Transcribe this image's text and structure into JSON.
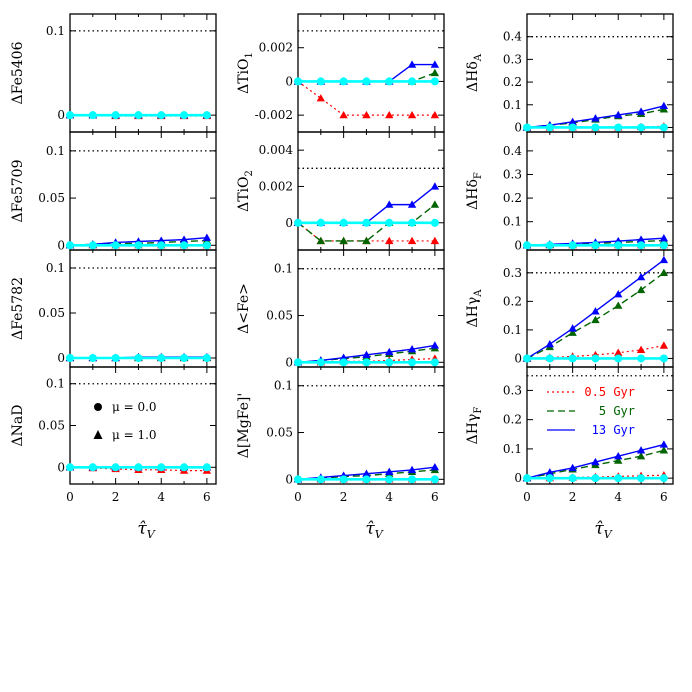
{
  "colors": {
    "age_0_5": "#ff0000",
    "age_5": "#006400",
    "age_13": "#0000ff",
    "mu0": "#00ffff",
    "reference": "#000000"
  },
  "chart_data": {
    "type": "line",
    "x": [
      0,
      1,
      2,
      3,
      4,
      5,
      6
    ],
    "xlabel": "τ̂V",
    "xticks": [
      "0",
      "2",
      "4",
      "6"
    ],
    "legend_mu": [
      {
        "marker": "circle",
        "text": "μ  =  0.0"
      },
      {
        "marker": "triangle",
        "text": "μ  =  1.0"
      }
    ],
    "legend_age": [
      {
        "style": "dotted",
        "color": "red",
        "text": "0.5 Gyr"
      },
      {
        "style": "dashed",
        "color": "green",
        "text": "5 Gyr"
      },
      {
        "style": "solid",
        "color": "blue",
        "text": "13 Gyr"
      }
    ],
    "panels": [
      {
        "ylabel": "ΔFe5406",
        "ylim": [
          -0.02,
          0.12
        ],
        "yticks": [
          "0",
          "0.1"
        ],
        "yticks_values": [
          0,
          0.1
        ],
        "reference": 0.1,
        "series": {
          "age_0_5": [
            0,
            0,
            -0.001,
            -0.001,
            -0.001,
            -0.001,
            -0.001
          ],
          "age_5": [
            0,
            0,
            0,
            0,
            0,
            0,
            0
          ],
          "age_13": [
            0,
            0,
            0,
            0,
            0,
            0,
            0
          ],
          "mu0": [
            0,
            0,
            0,
            0,
            0,
            0,
            0
          ]
        }
      },
      {
        "ylabel": "ΔTiO1",
        "ylim": [
          -0.003,
          0.004
        ],
        "yticks": [
          "-0.002",
          "0",
          "0.002"
        ],
        "yticks_values": [
          -0.002,
          0,
          0.002
        ],
        "reference": 0.003,
        "series": {
          "age_0_5": [
            0,
            -0.001,
            -0.002,
            -0.002,
            -0.002,
            -0.002,
            -0.002
          ],
          "age_5": [
            0,
            0,
            0,
            0,
            0,
            0,
            0.0005
          ],
          "age_13": [
            0,
            0,
            0,
            0,
            0,
            0.001,
            0.001
          ],
          "mu0": [
            0,
            0,
            0,
            0,
            0,
            0,
            0
          ]
        }
      },
      {
        "ylabel": "ΔHδA",
        "ylim": [
          -0.02,
          0.5
        ],
        "yticks": [
          "0",
          "0.1",
          "0.2",
          "0.3",
          "0.4"
        ],
        "yticks_values": [
          0,
          0.1,
          0.2,
          0.3,
          0.4
        ],
        "reference": 0.4,
        "series": {
          "age_0_5": [
            0,
            0,
            0,
            0,
            0,
            0.002,
            0.005
          ],
          "age_5": [
            0,
            0.01,
            0.02,
            0.035,
            0.05,
            0.06,
            0.08
          ],
          "age_13": [
            0,
            0.01,
            0.025,
            0.04,
            0.055,
            0.07,
            0.095
          ],
          "mu0": [
            0,
            0,
            0,
            0,
            0,
            0,
            0
          ]
        }
      },
      {
        "ylabel": "ΔFe5709",
        "ylim": [
          -0.005,
          0.12
        ],
        "yticks": [
          "0",
          "0.05",
          "0.1"
        ],
        "yticks_values": [
          0,
          0.05,
          0.1
        ],
        "reference": 0.1,
        "series": {
          "age_0_5": [
            0,
            0,
            0,
            0,
            0,
            0,
            0
          ],
          "age_5": [
            0,
            0.001,
            0.002,
            0.002,
            0.003,
            0.004,
            0.005
          ],
          "age_13": [
            0,
            0.001,
            0.003,
            0.004,
            0.005,
            0.006,
            0.008
          ],
          "mu0": [
            0,
            0,
            0,
            0,
            0,
            0,
            0
          ]
        }
      },
      {
        "ylabel": "ΔTiO2",
        "ylim": [
          -0.0015,
          0.005
        ],
        "yticks": [
          "0",
          "0.002",
          "0.004"
        ],
        "yticks_values": [
          0,
          0.002,
          0.004
        ],
        "reference": 0.003,
        "series": {
          "age_0_5": [
            0,
            -0.001,
            -0.001,
            -0.001,
            -0.001,
            -0.001,
            -0.001
          ],
          "age_5": [
            0,
            -0.001,
            -0.001,
            -0.001,
            0,
            0,
            0.001
          ],
          "age_13": [
            0,
            0,
            0,
            0,
            0.001,
            0.001,
            0.002
          ],
          "mu0": [
            0,
            0,
            0,
            0,
            0,
            0,
            0
          ]
        }
      },
      {
        "ylabel": "ΔHδF",
        "ylim": [
          -0.02,
          0.48
        ],
        "yticks": [
          "0",
          "0.1",
          "0.2",
          "0.3",
          "0.4"
        ],
        "yticks_values": [
          0,
          0.1,
          0.2,
          0.3,
          0.4
        ],
        "reference": null,
        "series": {
          "age_0_5": [
            0,
            0,
            0,
            0,
            0,
            0,
            0
          ],
          "age_5": [
            0,
            0.002,
            0.005,
            0.008,
            0.012,
            0.016,
            0.02
          ],
          "age_13": [
            0,
            0.004,
            0.008,
            0.012,
            0.018,
            0.024,
            0.03
          ],
          "mu0": [
            0,
            0,
            0,
            0,
            0,
            0,
            0
          ]
        }
      },
      {
        "ylabel": "ΔFe5782",
        "ylim": [
          -0.01,
          0.12
        ],
        "yticks": [
          "0",
          "0.05",
          "0.1"
        ],
        "yticks_values": [
          0,
          0.05,
          0.1
        ],
        "reference": 0.1,
        "series": {
          "age_0_5": [
            0,
            0,
            0,
            0,
            0,
            0,
            0
          ],
          "age_5": [
            0,
            0,
            0,
            0,
            0,
            0,
            0
          ],
          "age_13": [
            0,
            0,
            0,
            0.001,
            0.001,
            0.001,
            0.001
          ],
          "mu0": [
            0,
            0,
            0,
            0,
            0,
            0,
            0
          ]
        }
      },
      {
        "ylabel": "Δ<Fe>",
        "ylim": [
          -0.005,
          0.12
        ],
        "yticks": [
          "0",
          "0.05",
          "0.1"
        ],
        "yticks_values": [
          0,
          0.05,
          0.1
        ],
        "reference": 0.1,
        "series": {
          "age_0_5": [
            0,
            0,
            0.001,
            0.001,
            0.002,
            0.003,
            0.004
          ],
          "age_5": [
            0,
            0.002,
            0.004,
            0.006,
            0.009,
            0.012,
            0.015
          ],
          "age_13": [
            0,
            0.002,
            0.005,
            0.008,
            0.011,
            0.014,
            0.018
          ],
          "mu0": [
            0,
            0,
            0,
            0,
            0,
            0,
            0
          ]
        }
      },
      {
        "ylabel": "ΔHγA",
        "ylim": [
          -0.03,
          0.38
        ],
        "yticks": [
          "0",
          "0.1",
          "0.2",
          "0.3"
        ],
        "yticks_values": [
          0,
          0.1,
          0.2,
          0.3
        ],
        "reference": 0.3,
        "series": {
          "age_0_5": [
            0,
            0.003,
            0.007,
            0.012,
            0.02,
            0.03,
            0.045
          ],
          "age_5": [
            0,
            0.04,
            0.09,
            0.135,
            0.185,
            0.24,
            0.3
          ],
          "age_13": [
            0,
            0.05,
            0.105,
            0.165,
            0.225,
            0.285,
            0.345
          ],
          "mu0": [
            0,
            0,
            0,
            0,
            0,
            0,
            0
          ]
        }
      },
      {
        "ylabel": "ΔNaD",
        "ylim": [
          -0.02,
          0.12
        ],
        "yticks": [
          "0",
          "0.05",
          "0.1"
        ],
        "yticks_values": [
          0,
          0.05,
          0.1
        ],
        "reference": 0.1,
        "series": {
          "age_0_5": [
            0,
            -0.001,
            -0.002,
            -0.003,
            -0.003,
            -0.004,
            -0.004
          ],
          "age_5": [
            0,
            0,
            0,
            0,
            0,
            0,
            0
          ],
          "age_13": [
            0,
            0,
            0,
            0,
            0,
            0,
            0
          ],
          "mu0": [
            0,
            0,
            0,
            0,
            0,
            0,
            0
          ]
        }
      },
      {
        "ylabel": "Δ[MgFe]'",
        "ylim": [
          -0.005,
          0.12
        ],
        "yticks": [
          "0",
          "0.05",
          "0.1"
        ],
        "yticks_values": [
          0,
          0.05,
          0.1
        ],
        "reference": 0.1,
        "series": {
          "age_0_5": [
            0,
            0,
            0,
            0,
            0,
            0,
            0
          ],
          "age_5": [
            0,
            0.001,
            0.003,
            0.004,
            0.006,
            0.008,
            0.01
          ],
          "age_13": [
            0,
            0.002,
            0.004,
            0.006,
            0.008,
            0.01,
            0.013
          ],
          "mu0": [
            0,
            0,
            0,
            0,
            0,
            0,
            0
          ]
        }
      },
      {
        "ylabel": "ΔHγF",
        "ylim": [
          -0.02,
          0.38
        ],
        "yticks": [
          "0",
          "0.1",
          "0.2",
          "0.3"
        ],
        "yticks_values": [
          0,
          0.1,
          0.2,
          0.3
        ],
        "reference": 0.35,
        "series": {
          "age_0_5": [
            0,
            0,
            0.002,
            0.004,
            0.006,
            0.008,
            0.01
          ],
          "age_5": [
            0,
            0.015,
            0.03,
            0.045,
            0.06,
            0.075,
            0.095
          ],
          "age_13": [
            0,
            0.02,
            0.035,
            0.055,
            0.075,
            0.095,
            0.115
          ],
          "mu0": [
            0,
            0,
            0,
            0,
            0,
            0,
            0
          ]
        }
      }
    ]
  }
}
